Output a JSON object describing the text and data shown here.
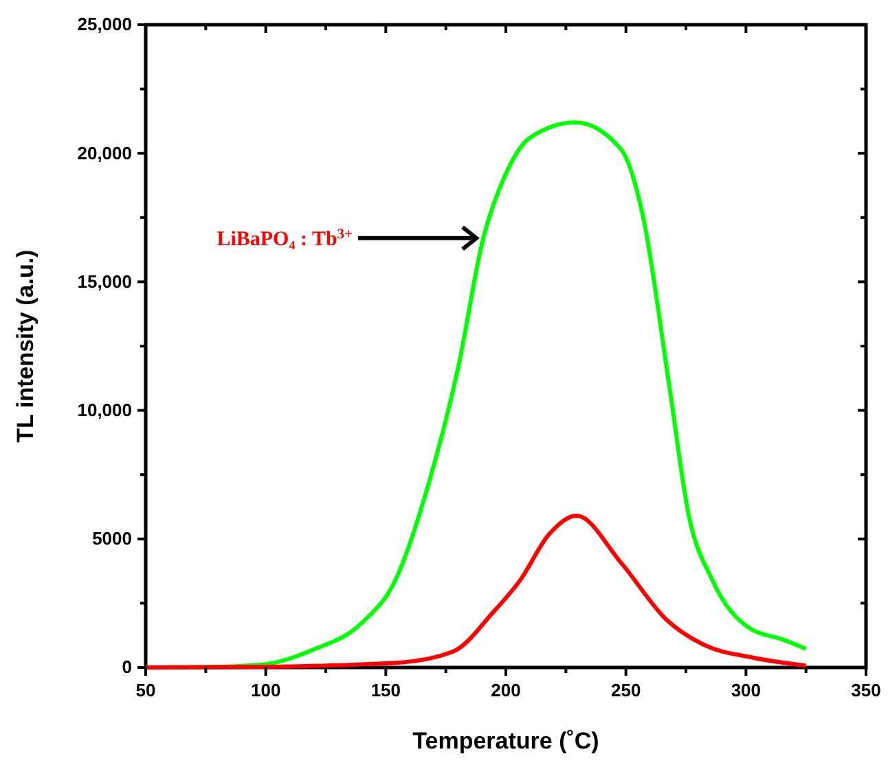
{
  "chart_data": {
    "type": "line",
    "xlabel": "Temperature (˚C)",
    "ylabel": "TL intensity (a.u.)",
    "xlim": [
      50,
      350
    ],
    "ylim": [
      0,
      25000
    ],
    "xticks": [
      50,
      {
        "value": 75,
        "label": null
      },
      100,
      {
        "value": 125,
        "label": null
      },
      150,
      {
        "value": 175,
        "label": null
      },
      200,
      {
        "value": 225,
        "label": null
      },
      250,
      {
        "value": 275,
        "label": null
      },
      300,
      {
        "value": 325,
        "label": null
      },
      350
    ],
    "yticks": [
      0,
      {
        "value": 2500,
        "label": null
      },
      5000,
      {
        "value": 7500,
        "label": null
      },
      {
        "value": 10000,
        "label": "10,000"
      },
      {
        "value": 12500,
        "label": null
      },
      {
        "value": 15000,
        "label": "15,000"
      },
      {
        "value": 17500,
        "label": null
      },
      {
        "value": 20000,
        "label": "20,000"
      },
      {
        "value": 22500,
        "label": null
      },
      {
        "value": 25000,
        "label": "25,000"
      }
    ],
    "grid": false,
    "marker": "none",
    "line_style": "solid",
    "series": [
      {
        "color": "#00ff00",
        "x": [
          50,
          80,
          100,
          120,
          140,
          154,
          168,
          180,
          190.6,
          200,
          210,
          229,
          248,
          257,
          268,
          276,
          286,
          302,
          315,
          325
        ],
        "values": [
          0,
          30,
          130,
          700,
          1730,
          3400,
          7200,
          11600,
          16700,
          19200,
          20600,
          21200,
          20150,
          17600,
          11000,
          6000,
          3400,
          1500,
          1100,
          730
        ]
      },
      {
        "color": "#ff0000",
        "x": [
          50,
          100,
          154,
          178,
          195,
          206,
          218,
          229.5,
          248,
          267,
          283.5,
          302,
          325
        ],
        "values": [
          0,
          30,
          180,
          620,
          2180,
          3400,
          5180,
          5900,
          4070,
          1850,
          840,
          400,
          70
        ]
      }
    ],
    "annotations": [
      {
        "text": "LiBaPO₄ : Tb$^{3+}$",
        "x": 190,
        "y": 16700
      }
    ]
  }
}
